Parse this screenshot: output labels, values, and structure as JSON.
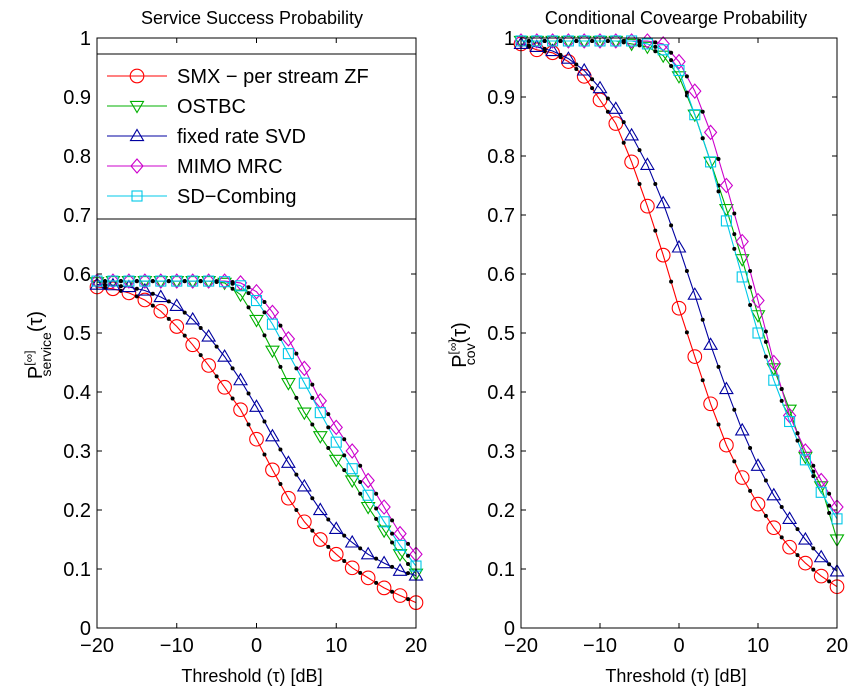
{
  "figure": {
    "background": "#ffffff"
  },
  "chart_data": [
    {
      "type": "line",
      "title": "Service Success Probability",
      "xlabel": "Threshold (τ) [dB]",
      "ylabel": {
        "base": "P",
        "sup": "[∞]",
        "sub": "service",
        "arg": "(τ)"
      },
      "xlim": [
        -20,
        20
      ],
      "ylim": [
        0,
        1
      ],
      "xticks": [
        -20,
        -10,
        0,
        10,
        20
      ],
      "xtick_labels": [
        "−20",
        "−10",
        "0",
        "10",
        "20"
      ],
      "yticks": [
        0,
        0.1,
        0.2,
        0.3,
        0.4,
        0.5,
        0.6,
        0.7,
        0.8,
        0.9,
        1
      ],
      "ytick_labels": [
        "0",
        "0.1",
        "0.2",
        "0.3",
        "0.4",
        "0.5",
        "0.6",
        "0.7",
        "0.8",
        "0.9",
        "1"
      ],
      "grid": false,
      "legend_position": "top-right",
      "x": [
        -20,
        -18,
        -16,
        -14,
        -12,
        -10,
        -8,
        -6,
        -4,
        -2,
        0,
        2,
        4,
        6,
        8,
        10,
        12,
        14,
        16,
        18,
        20
      ],
      "series": [
        {
          "name": "SMX − per stream ZF",
          "color": "#ff0000",
          "marker": "circle",
          "values": [
            0.578,
            0.575,
            0.568,
            0.556,
            0.537,
            0.511,
            0.48,
            0.445,
            0.408,
            0.37,
            0.32,
            0.268,
            0.22,
            0.18,
            0.15,
            0.125,
            0.102,
            0.085,
            0.068,
            0.055,
            0.043
          ]
        },
        {
          "name": "OSTBC",
          "color": "#00b000",
          "marker": "triangle-down",
          "values": [
            0.586,
            0.588,
            0.588,
            0.588,
            0.588,
            0.588,
            0.588,
            0.588,
            0.585,
            0.565,
            0.522,
            0.47,
            0.415,
            0.365,
            0.325,
            0.285,
            0.25,
            0.205,
            0.165,
            0.125,
            0.092
          ]
        },
        {
          "name": "fixed rate SVD",
          "color": "#0000a0",
          "marker": "triangle-up",
          "values": [
            0.582,
            0.581,
            0.578,
            0.572,
            0.561,
            0.546,
            0.523,
            0.494,
            0.46,
            0.42,
            0.375,
            0.325,
            0.28,
            0.24,
            0.2,
            0.168,
            0.145,
            0.125,
            0.11,
            0.097,
            0.089
          ]
        },
        {
          "name": "MIMO MRC",
          "color": "#cc00cc",
          "marker": "diamond",
          "values": [
            0.588,
            0.588,
            0.588,
            0.588,
            0.588,
            0.588,
            0.588,
            0.588,
            0.588,
            0.585,
            0.57,
            0.535,
            0.49,
            0.44,
            0.385,
            0.34,
            0.3,
            0.25,
            0.205,
            0.16,
            0.125
          ]
        },
        {
          "name": "SD−Combing",
          "color": "#00c8e8",
          "marker": "square",
          "values": [
            0.588,
            0.588,
            0.588,
            0.588,
            0.588,
            0.588,
            0.588,
            0.588,
            0.587,
            0.58,
            0.555,
            0.515,
            0.465,
            0.415,
            0.365,
            0.315,
            0.27,
            0.225,
            0.18,
            0.14,
            0.105
          ]
        }
      ]
    },
    {
      "type": "line",
      "title": "Conditional Covearge Probability",
      "xlabel": "Threshold (τ) [dB]",
      "ylabel": {
        "base": "P",
        "sup": "[∞]",
        "sub": "cov",
        "arg": "(τ)"
      },
      "xlim": [
        -20,
        20
      ],
      "ylim": [
        0,
        1
      ],
      "xticks": [
        -20,
        -10,
        0,
        10,
        20
      ],
      "xtick_labels": [
        "−20",
        "−10",
        "0",
        "10",
        "20"
      ],
      "yticks": [
        0,
        0.1,
        0.2,
        0.3,
        0.4,
        0.5,
        0.6,
        0.7,
        0.8,
        0.9,
        1
      ],
      "ytick_labels": [
        "0",
        "0.1",
        "0.2",
        "0.3",
        "0.4",
        "0.5",
        "0.6",
        "0.7",
        "0.8",
        "0.9",
        "1"
      ],
      "grid": false,
      "x": [
        -20,
        -18,
        -16,
        -14,
        -12,
        -10,
        -8,
        -6,
        -4,
        -2,
        0,
        2,
        4,
        6,
        8,
        10,
        12,
        14,
        16,
        18,
        20
      ],
      "series": [
        {
          "name": "SMX − per stream ZF",
          "color": "#ff0000",
          "marker": "circle",
          "values": [
            0.99,
            0.98,
            0.975,
            0.96,
            0.935,
            0.895,
            0.855,
            0.79,
            0.715,
            0.632,
            0.542,
            0.46,
            0.38,
            0.31,
            0.255,
            0.21,
            0.17,
            0.137,
            0.11,
            0.088,
            0.07
          ]
        },
        {
          "name": "OSTBC",
          "color": "#00b000",
          "marker": "triangle-down",
          "values": [
            0.995,
            0.995,
            0.995,
            0.995,
            0.995,
            0.995,
            0.995,
            0.99,
            0.985,
            0.97,
            0.935,
            0.87,
            0.79,
            0.71,
            0.625,
            0.53,
            0.44,
            0.37,
            0.29,
            0.24,
            0.15
          ]
        },
        {
          "name": "fixed rate SVD",
          "color": "#0000a0",
          "marker": "triangle-up",
          "values": [
            0.99,
            0.985,
            0.978,
            0.965,
            0.945,
            0.915,
            0.88,
            0.835,
            0.785,
            0.72,
            0.645,
            0.565,
            0.48,
            0.405,
            0.335,
            0.275,
            0.225,
            0.185,
            0.15,
            0.12,
            0.096
          ]
        },
        {
          "name": "MIMO MRC",
          "color": "#cc00cc",
          "marker": "diamond",
          "values": [
            0.995,
            0.995,
            0.995,
            0.995,
            0.995,
            0.995,
            0.995,
            0.995,
            0.995,
            0.99,
            0.96,
            0.91,
            0.84,
            0.75,
            0.655,
            0.555,
            0.45,
            0.36,
            0.3,
            0.25,
            0.205
          ]
        },
        {
          "name": "SD−Combing",
          "color": "#00c8e8",
          "marker": "square",
          "values": [
            0.995,
            0.995,
            0.995,
            0.995,
            0.995,
            0.995,
            0.995,
            0.995,
            0.99,
            0.98,
            0.945,
            0.87,
            0.79,
            0.69,
            0.595,
            0.5,
            0.42,
            0.35,
            0.285,
            0.23,
            0.185
          ]
        }
      ]
    }
  ]
}
